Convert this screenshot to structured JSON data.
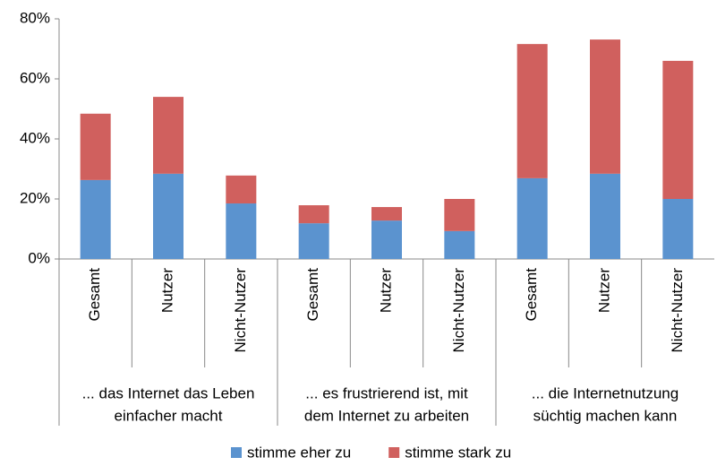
{
  "chart_data": {
    "type": "bar",
    "stacked": true,
    "categories": [
      "Gesamt",
      "Nutzer",
      "Nicht-Nutzer",
      "Gesamt",
      "Nutzer",
      "Nicht-Nutzer",
      "Gesamt",
      "Nutzer",
      "Nicht-Nutzer"
    ],
    "groups": [
      {
        "lines": [
          "... das Internet das Leben",
          "einfacher macht"
        ]
      },
      {
        "lines": [
          "... es frustrierend ist, mit",
          "dem Internet zu arbeiten"
        ]
      },
      {
        "lines": [
          "... die Internetnutzung",
          "süchtig machen kann"
        ]
      }
    ],
    "series": [
      {
        "name": "stimme eher zu",
        "color": "#5b93cf",
        "values": [
          26.3,
          28.4,
          18.5,
          11.9,
          12.8,
          9.3,
          26.9,
          28.4,
          20
        ]
      },
      {
        "name": "stimme stark zu",
        "color": "#d0605e",
        "values": [
          22.1,
          25.6,
          9.3,
          6,
          4.5,
          10.7,
          44.7,
          44.7,
          46
        ]
      }
    ],
    "ylim": [
      0,
      80
    ],
    "yticks": [
      {
        "value": 0,
        "label": "0%"
      },
      {
        "value": 20,
        "label": "20%"
      },
      {
        "value": 40,
        "label": "40%"
      },
      {
        "value": 60,
        "label": "60%"
      },
      {
        "value": 80,
        "label": "80%"
      }
    ]
  }
}
